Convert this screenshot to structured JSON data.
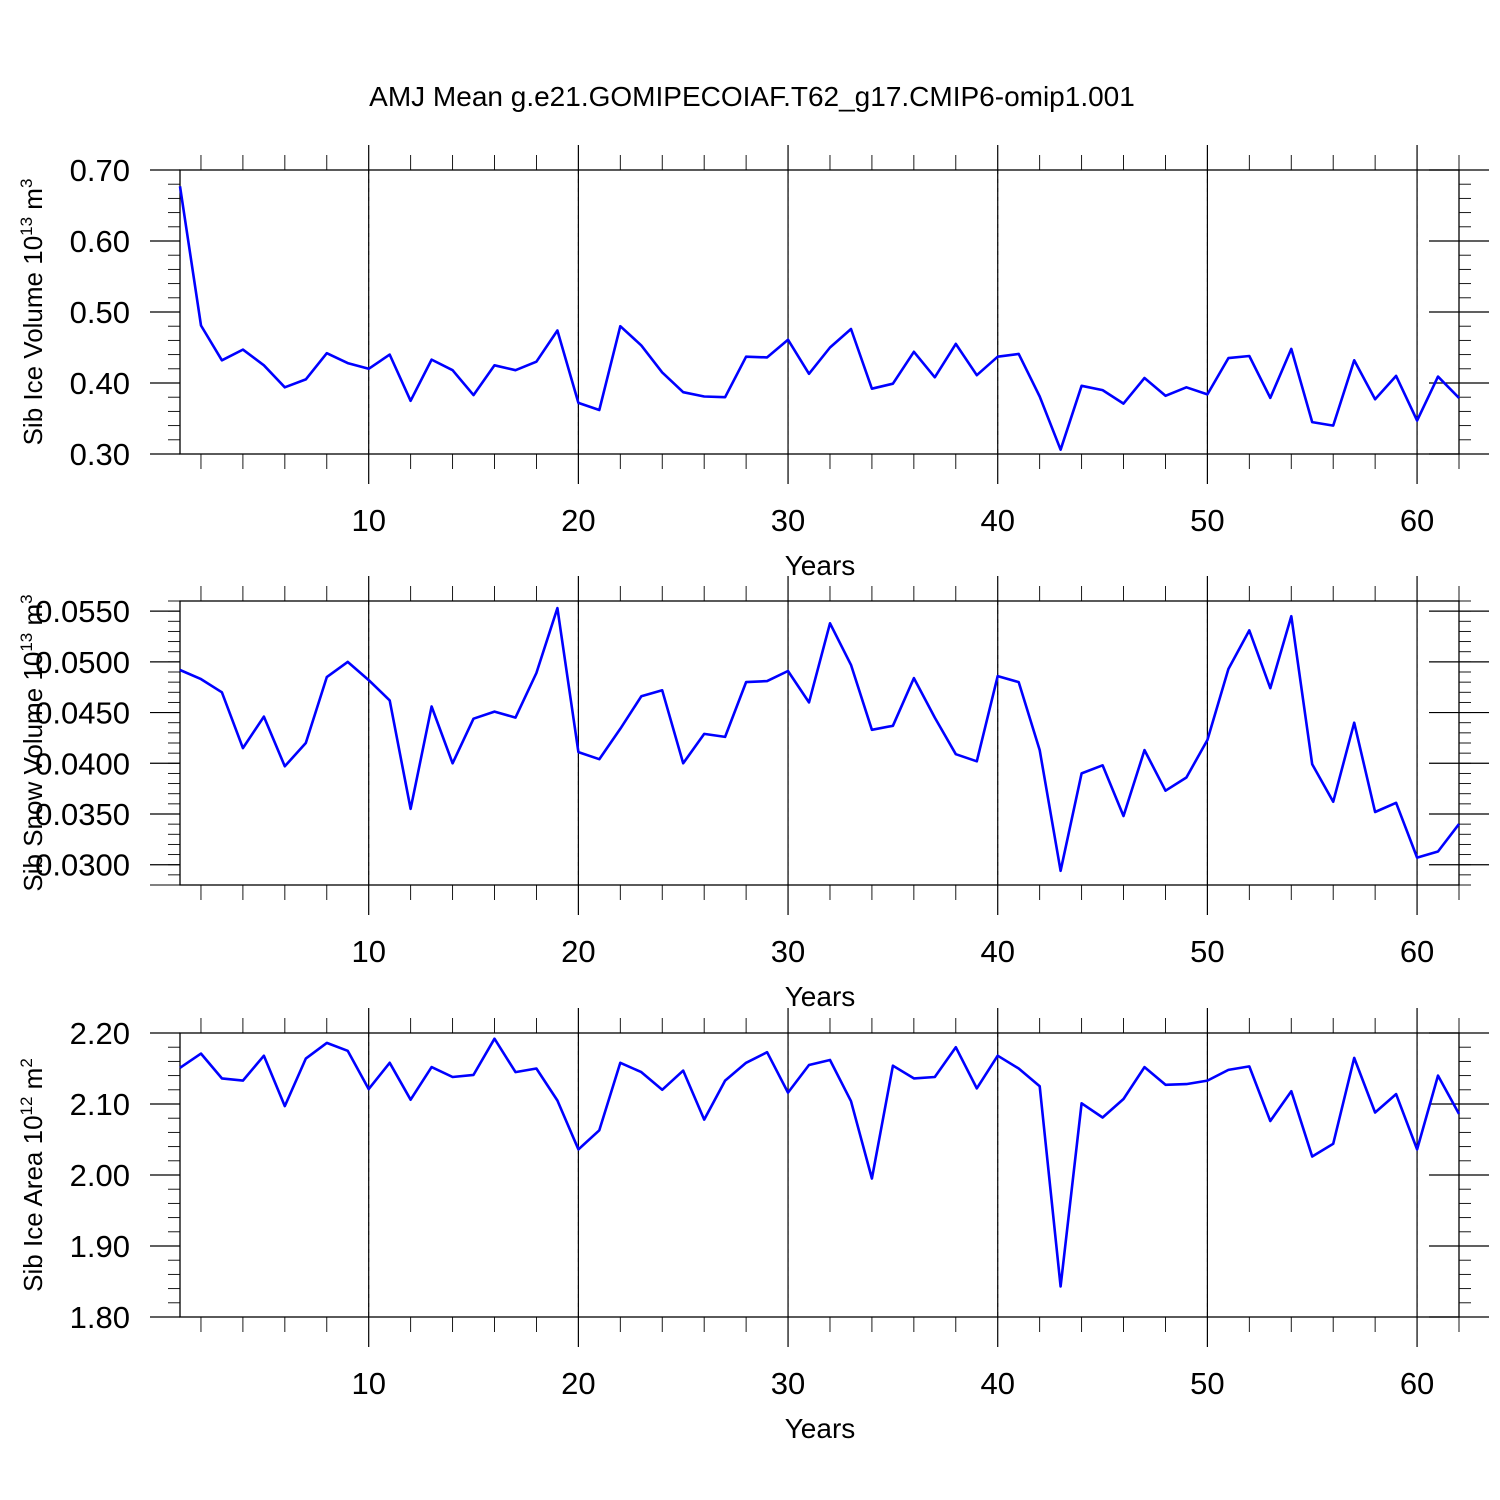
{
  "title": "AMJ Mean g.e21.GOMIPECOIAF.T62_g17.CMIP6-omip1.001",
  "line_color": "#0000ff",
  "chart_data": [
    {
      "type": "line",
      "ylabel_base": "Sib Ice Volume 10",
      "ylabel_exp": "13",
      "ylabel_unit": " m",
      "ylabel_unit_exp": "3",
      "xlabel": "Years",
      "xlim": [
        1,
        62
      ],
      "ylim": [
        0.3,
        0.7
      ],
      "yticks": [
        0.3,
        0.4,
        0.5,
        0.6,
        0.7
      ],
      "ytick_labels": [
        "0.30",
        "0.40",
        "0.50",
        "0.60",
        "0.70"
      ],
      "ytick_minor_step": 0.02,
      "xticks": [
        10,
        20,
        30,
        40,
        50,
        60
      ],
      "xtick_labels": [
        "10",
        "20",
        "30",
        "40",
        "50",
        "60"
      ],
      "grid": "vertical dashed at major x ticks",
      "series": [
        {
          "x_start": 1,
          "values": [
            0.677,
            0.481,
            0.432,
            0.447,
            0.425,
            0.394,
            0.405,
            0.442,
            0.428,
            0.42,
            0.44,
            0.375,
            0.433,
            0.418,
            0.383,
            0.425,
            0.418,
            0.43,
            0.474,
            0.372,
            0.362,
            0.48,
            0.453,
            0.415,
            0.387,
            0.381,
            0.38,
            0.437,
            0.436,
            0.461,
            0.413,
            0.45,
            0.476,
            0.392,
            0.399,
            0.444,
            0.408,
            0.455,
            0.411,
            0.437,
            0.441,
            0.381,
            0.306,
            0.396,
            0.39,
            0.371,
            0.407,
            0.382,
            0.394,
            0.384,
            0.435,
            0.438,
            0.379,
            0.448,
            0.345,
            0.34,
            0.432,
            0.377,
            0.41,
            0.347,
            0.409,
            0.379
          ]
        }
      ]
    },
    {
      "type": "line",
      "ylabel_base": "Sib Snow Volume 10",
      "ylabel_exp": "13",
      "ylabel_unit": " m",
      "ylabel_unit_exp": "3",
      "xlabel": "Years",
      "xlim": [
        1,
        62
      ],
      "ylim": [
        0.028,
        0.056
      ],
      "yticks": [
        0.03,
        0.035,
        0.04,
        0.045,
        0.05,
        0.055
      ],
      "ytick_labels": [
        "0.0300",
        "0.0350",
        "0.0400",
        "0.0450",
        "0.0500",
        "0.0550"
      ],
      "ytick_minor_step": 0.001,
      "xticks": [
        10,
        20,
        30,
        40,
        50,
        60
      ],
      "xtick_labels": [
        "10",
        "20",
        "30",
        "40",
        "50",
        "60"
      ],
      "grid": "vertical dashed at major x ticks",
      "series": [
        {
          "x_start": 1,
          "values": [
            0.0492,
            0.0483,
            0.047,
            0.0415,
            0.0446,
            0.0397,
            0.042,
            0.0485,
            0.05,
            0.0482,
            0.0462,
            0.0355,
            0.0456,
            0.04,
            0.0444,
            0.0451,
            0.0445,
            0.0489,
            0.0553,
            0.0411,
            0.0404,
            0.0434,
            0.0466,
            0.0472,
            0.04,
            0.0429,
            0.0426,
            0.048,
            0.0481,
            0.0491,
            0.046,
            0.0538,
            0.0497,
            0.0433,
            0.0437,
            0.0484,
            0.0445,
            0.0409,
            0.0402,
            0.0486,
            0.048,
            0.0413,
            0.0294,
            0.039,
            0.0398,
            0.0348,
            0.0413,
            0.0373,
            0.0386,
            0.0423,
            0.0493,
            0.0531,
            0.0474,
            0.0545,
            0.0399,
            0.0362,
            0.044,
            0.0352,
            0.0361,
            0.0307,
            0.0313,
            0.034
          ]
        }
      ]
    },
    {
      "type": "line",
      "ylabel_base": "Sib Ice Area 10",
      "ylabel_exp": "12",
      "ylabel_unit": " m",
      "ylabel_unit_exp": "2",
      "xlabel": "Years",
      "xlim": [
        1,
        62
      ],
      "ylim": [
        1.8,
        2.2
      ],
      "yticks": [
        1.8,
        1.9,
        2.0,
        2.1,
        2.2
      ],
      "ytick_labels": [
        "1.80",
        "1.90",
        "2.00",
        "2.10",
        "2.20"
      ],
      "ytick_minor_step": 0.02,
      "xticks": [
        10,
        20,
        30,
        40,
        50,
        60
      ],
      "xtick_labels": [
        "10",
        "20",
        "30",
        "40",
        "50",
        "60"
      ],
      "grid": "vertical dashed at major x ticks",
      "series": [
        {
          "x_start": 1,
          "values": [
            2.151,
            2.171,
            2.136,
            2.133,
            2.168,
            2.097,
            2.164,
            2.186,
            2.175,
            2.121,
            2.158,
            2.106,
            2.152,
            2.138,
            2.141,
            2.192,
            2.145,
            2.15,
            2.105,
            2.036,
            2.063,
            2.158,
            2.145,
            2.12,
            2.147,
            2.078,
            2.133,
            2.158,
            2.173,
            2.116,
            2.155,
            2.162,
            2.104,
            1.995,
            2.154,
            2.136,
            2.138,
            2.18,
            2.122,
            2.168,
            2.15,
            2.125,
            1.843,
            2.101,
            2.081,
            2.107,
            2.152,
            2.127,
            2.128,
            2.133,
            2.148,
            2.153,
            2.076,
            2.118,
            2.026,
            2.044,
            2.165,
            2.088,
            2.114,
            2.036,
            2.14,
            2.086
          ]
        }
      ]
    }
  ]
}
